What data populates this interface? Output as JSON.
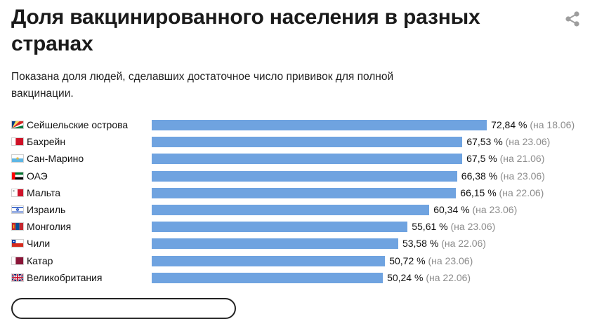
{
  "header": {
    "title": "Доля вакцинированного населения в разных странах",
    "subtitle": "Показана доля людей, сделавших достаточное число прививок для полной вакцинации."
  },
  "chart_data": {
    "type": "bar",
    "orientation": "horizontal",
    "title": "Доля вакцинированного населения в разных странах",
    "subtitle": "Показана доля людей, сделавших достаточное число прививок для полной вакцинации.",
    "categories": [
      "Сейшельские острова",
      "Бахрейн",
      "Сан-Марино",
      "ОАЭ",
      "Мальта",
      "Израиль",
      "Монголия",
      "Чили",
      "Катар",
      "Великобритания"
    ],
    "values": [
      72.84,
      67.53,
      67.5,
      66.38,
      66.15,
      60.34,
      55.61,
      53.58,
      50.72,
      50.24
    ],
    "value_labels": [
      "72,84 %",
      "67,53 %",
      "67,5 %",
      "66,38 %",
      "66,15 %",
      "60,34 %",
      "55,61 %",
      "53,58 %",
      "50,72 %",
      "50,24 %"
    ],
    "date_labels": [
      "(на 18.06)",
      "(на 23.06)",
      "(на 21.06)",
      "(на 23.06)",
      "(на 22.06)",
      "(на 23.06)",
      "(на 23.06)",
      "(на 22.06)",
      "(на 23.06)",
      "(на 22.06)"
    ],
    "flags": [
      "seychelles-flag",
      "bahrain-flag",
      "san-marino-flag",
      "uae-flag",
      "malta-flag",
      "israel-flag",
      "mongolia-flag",
      "chile-flag",
      "qatar-flag",
      "uk-flag"
    ],
    "unit": "%",
    "xlim": [
      0,
      100
    ],
    "grid": false,
    "legend": "none",
    "bar_color": "#6fa3e0"
  },
  "icons": {
    "share": "share-icon"
  },
  "colors": {
    "bar": "#6fa3e0",
    "date_text": "#8c8c8c",
    "title": "#1a1a1a"
  }
}
